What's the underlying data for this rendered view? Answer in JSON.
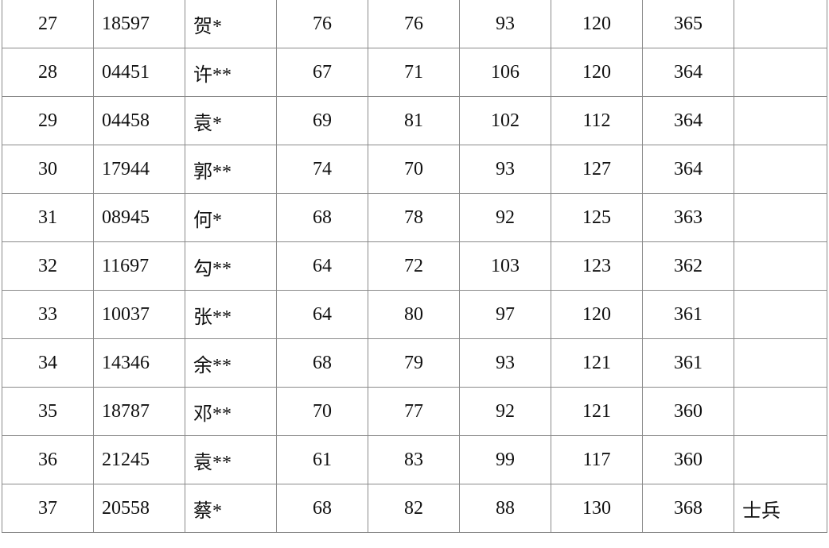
{
  "table": {
    "rows": [
      [
        "27",
        "18597",
        "贺*",
        "76",
        "76",
        "93",
        "120",
        "365",
        ""
      ],
      [
        "28",
        "04451",
        "许**",
        "67",
        "71",
        "106",
        "120",
        "364",
        ""
      ],
      [
        "29",
        "04458",
        "袁*",
        "69",
        "81",
        "102",
        "112",
        "364",
        ""
      ],
      [
        "30",
        "17944",
        "郭**",
        "74",
        "70",
        "93",
        "127",
        "364",
        ""
      ],
      [
        "31",
        "08945",
        "何*",
        "68",
        "78",
        "92",
        "125",
        "363",
        ""
      ],
      [
        "32",
        "11697",
        "勾**",
        "64",
        "72",
        "103",
        "123",
        "362",
        ""
      ],
      [
        "33",
        "10037",
        "张**",
        "64",
        "80",
        "97",
        "120",
        "361",
        ""
      ],
      [
        "34",
        "14346",
        "余**",
        "68",
        "79",
        "93",
        "121",
        "361",
        ""
      ],
      [
        "35",
        "18787",
        "邓**",
        "70",
        "77",
        "92",
        "121",
        "360",
        ""
      ],
      [
        "36",
        "21245",
        "袁**",
        "61",
        "83",
        "99",
        "117",
        "360",
        ""
      ],
      [
        "37",
        "20558",
        "蔡*",
        "68",
        "82",
        "88",
        "130",
        "368",
        "士兵"
      ]
    ]
  }
}
